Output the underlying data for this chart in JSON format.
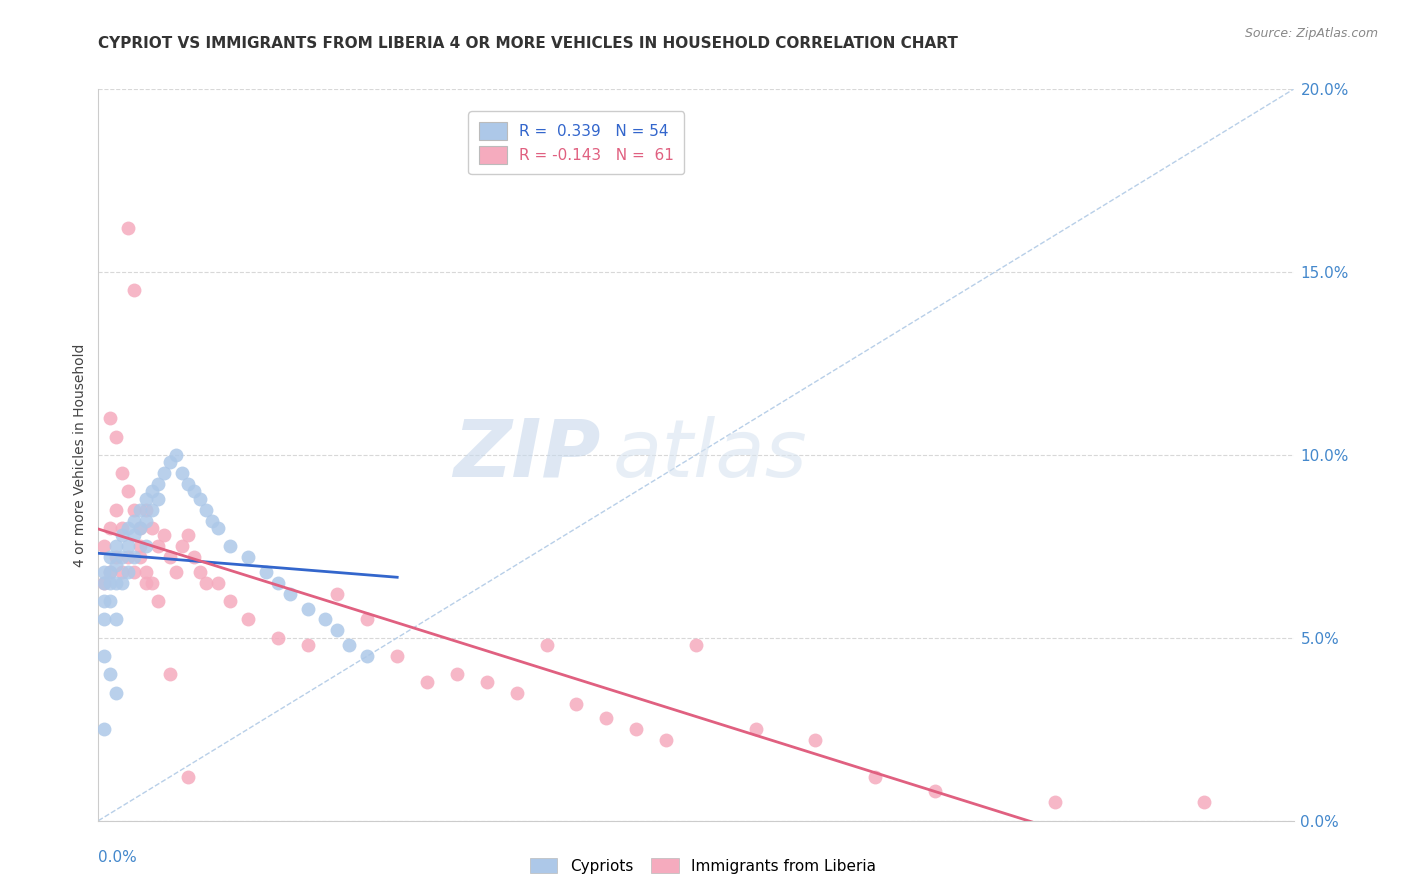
{
  "title": "CYPRIOT VS IMMIGRANTS FROM LIBERIA 4 OR MORE VEHICLES IN HOUSEHOLD CORRELATION CHART",
  "source": "Source: ZipAtlas.com",
  "ylabel": "4 or more Vehicles in Household",
  "xmin": 0.0,
  "xmax": 0.2,
  "ymin": 0.0,
  "ymax": 0.2,
  "cypriot_R": "0.339",
  "cypriot_N": "54",
  "liberia_R": "-0.143",
  "liberia_N": "61",
  "legend_labels": [
    "Cypriots",
    "Immigrants from Liberia"
  ],
  "cypriot_color": "#adc8e8",
  "liberia_color": "#f5abbe",
  "cypriot_line_color": "#3366cc",
  "liberia_line_color": "#e06080",
  "diag_color": "#b8cfe8",
  "grid_color": "#d8d8d8",
  "watermark_zip": "#c8d8ec",
  "watermark_atlas": "#d8e4f0",
  "title_color": "#333333",
  "source_color": "#888888",
  "axis_label_color": "#4488cc",
  "ylabel_color": "#444444",
  "yticks": [
    0.0,
    0.05,
    0.1,
    0.15,
    0.2
  ],
  "xticks": [
    0.0,
    0.05,
    0.1,
    0.15,
    0.2
  ],
  "cypriot_x": [
    0.001,
    0.001,
    0.001,
    0.001,
    0.002,
    0.002,
    0.002,
    0.002,
    0.003,
    0.003,
    0.003,
    0.003,
    0.004,
    0.004,
    0.004,
    0.005,
    0.005,
    0.005,
    0.006,
    0.006,
    0.006,
    0.007,
    0.007,
    0.008,
    0.008,
    0.008,
    0.009,
    0.009,
    0.01,
    0.01,
    0.011,
    0.012,
    0.013,
    0.014,
    0.015,
    0.016,
    0.017,
    0.018,
    0.019,
    0.02,
    0.022,
    0.025,
    0.028,
    0.03,
    0.032,
    0.035,
    0.038,
    0.04,
    0.042,
    0.045,
    0.001,
    0.002,
    0.003,
    0.001
  ],
  "cypriot_y": [
    0.068,
    0.065,
    0.06,
    0.055,
    0.072,
    0.068,
    0.065,
    0.06,
    0.075,
    0.07,
    0.065,
    0.055,
    0.078,
    0.072,
    0.065,
    0.08,
    0.075,
    0.068,
    0.082,
    0.078,
    0.072,
    0.085,
    0.08,
    0.088,
    0.082,
    0.075,
    0.09,
    0.085,
    0.092,
    0.088,
    0.095,
    0.098,
    0.1,
    0.095,
    0.092,
    0.09,
    0.088,
    0.085,
    0.082,
    0.08,
    0.075,
    0.072,
    0.068,
    0.065,
    0.062,
    0.058,
    0.055,
    0.052,
    0.048,
    0.045,
    0.045,
    0.04,
    0.035,
    0.025
  ],
  "liberia_x": [
    0.001,
    0.001,
    0.002,
    0.002,
    0.003,
    0.003,
    0.004,
    0.004,
    0.005,
    0.005,
    0.006,
    0.006,
    0.007,
    0.007,
    0.008,
    0.008,
    0.009,
    0.01,
    0.011,
    0.012,
    0.013,
    0.014,
    0.015,
    0.016,
    0.017,
    0.018,
    0.02,
    0.022,
    0.025,
    0.03,
    0.035,
    0.04,
    0.045,
    0.05,
    0.055,
    0.06,
    0.065,
    0.07,
    0.075,
    0.08,
    0.085,
    0.09,
    0.095,
    0.1,
    0.11,
    0.12,
    0.13,
    0.14,
    0.16,
    0.185,
    0.002,
    0.003,
    0.004,
    0.005,
    0.006,
    0.007,
    0.008,
    0.009,
    0.01,
    0.012,
    0.015
  ],
  "liberia_y": [
    0.075,
    0.065,
    0.08,
    0.068,
    0.085,
    0.072,
    0.08,
    0.068,
    0.162,
    0.072,
    0.145,
    0.068,
    0.08,
    0.072,
    0.085,
    0.065,
    0.08,
    0.075,
    0.078,
    0.072,
    0.068,
    0.075,
    0.078,
    0.072,
    0.068,
    0.065,
    0.065,
    0.06,
    0.055,
    0.05,
    0.048,
    0.062,
    0.055,
    0.045,
    0.038,
    0.04,
    0.038,
    0.035,
    0.048,
    0.032,
    0.028,
    0.025,
    0.022,
    0.048,
    0.025,
    0.022,
    0.012,
    0.008,
    0.005,
    0.005,
    0.11,
    0.105,
    0.095,
    0.09,
    0.085,
    0.075,
    0.068,
    0.065,
    0.06,
    0.04,
    0.012
  ]
}
